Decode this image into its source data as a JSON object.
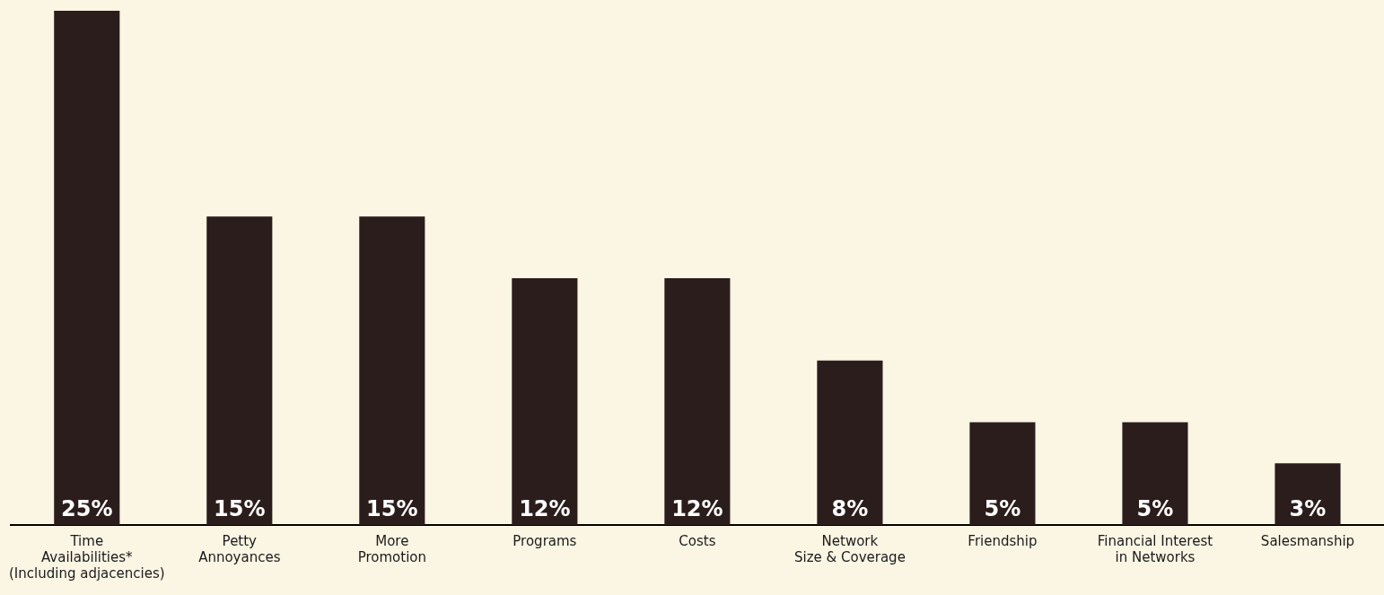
{
  "chart_data": {
    "type": "bar",
    "categories": [
      "Time\nAvailabilities*\n(Including adjacencies)",
      "Petty\nAnnoyances",
      "More\nPromotion",
      "Programs",
      "Costs",
      "Network\nSize & Coverage",
      "Friendship",
      "Financial Interest\nin Networks",
      "Salesmanship"
    ],
    "values": [
      25,
      15,
      15,
      12,
      12,
      8,
      5,
      5,
      3
    ],
    "color": "#2b1d1c",
    "value_labels": [
      "25%",
      "15%",
      "15%",
      "12%",
      "12%",
      "8%",
      "5%",
      "5%",
      "3%"
    ],
    "legend": false,
    "grid": false
  }
}
